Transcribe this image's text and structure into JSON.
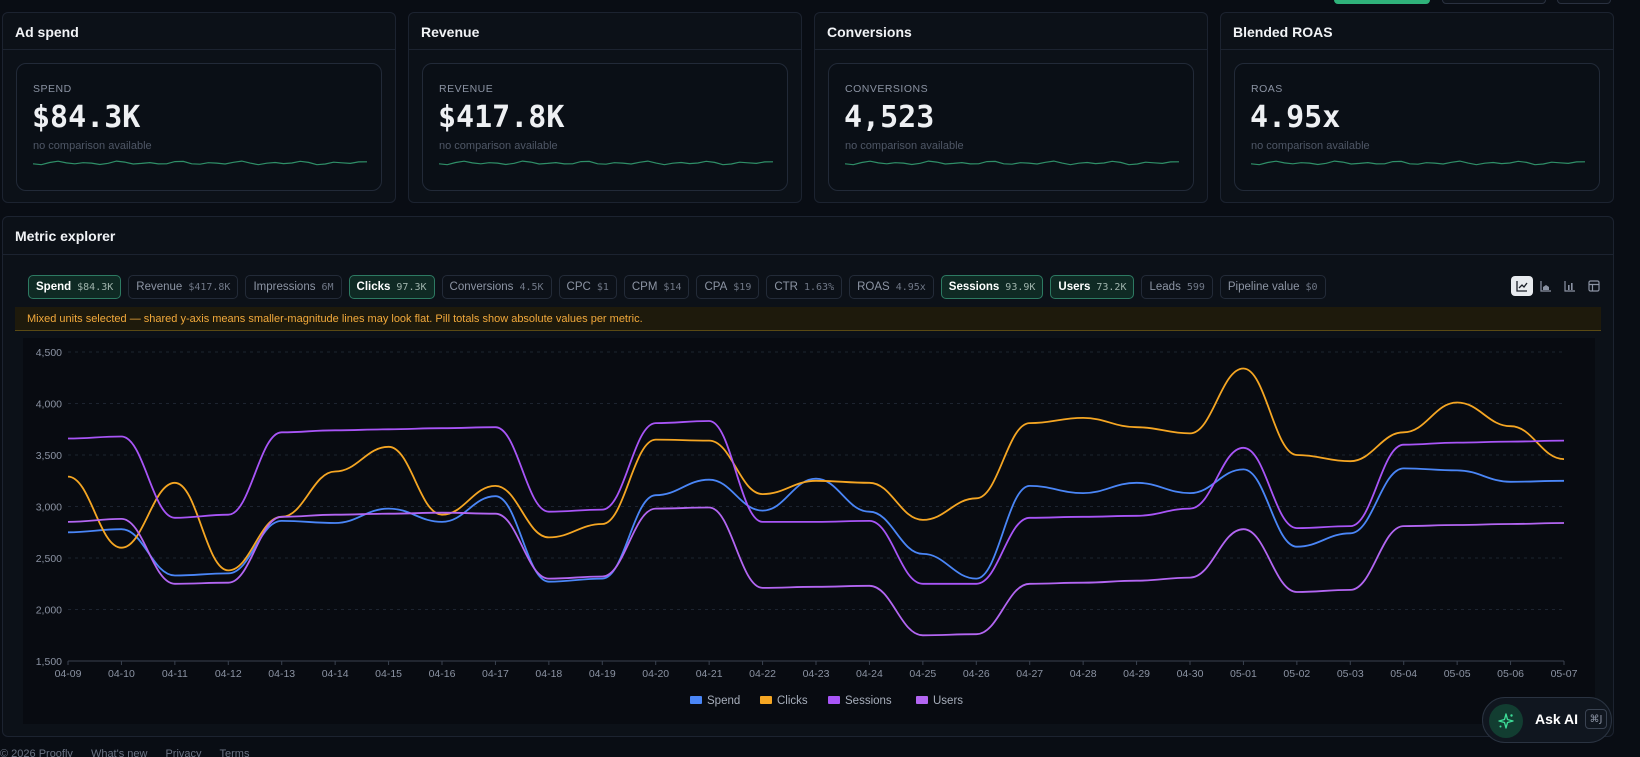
{
  "kpis": [
    {
      "title": "Ad spend",
      "label": "SPEND",
      "value": "$84.3K",
      "sub": "no comparison available"
    },
    {
      "title": "Revenue",
      "label": "REVENUE",
      "value": "$417.8K",
      "sub": "no comparison available"
    },
    {
      "title": "Conversions",
      "label": "CONVERSIONS",
      "value": "4,523",
      "sub": "no comparison available"
    },
    {
      "title": "Blended ROAS",
      "label": "ROAS",
      "value": "4.95x",
      "sub": "no comparison available"
    }
  ],
  "explorer": {
    "title": "Metric explorer",
    "pills": [
      {
        "name": "Spend",
        "value": "$84.3K",
        "active": true
      },
      {
        "name": "Revenue",
        "value": "$417.8K",
        "active": false
      },
      {
        "name": "Impressions",
        "value": "6M",
        "active": false
      },
      {
        "name": "Clicks",
        "value": "97.3K",
        "active": true
      },
      {
        "name": "Conversions",
        "value": "4.5K",
        "active": false
      },
      {
        "name": "CPC",
        "value": "$1",
        "active": false
      },
      {
        "name": "CPM",
        "value": "$14",
        "active": false
      },
      {
        "name": "CPA",
        "value": "$19",
        "active": false
      },
      {
        "name": "CTR",
        "value": "1.63%",
        "active": false
      },
      {
        "name": "ROAS",
        "value": "4.95x",
        "active": false
      },
      {
        "name": "Sessions",
        "value": "93.9K",
        "active": true
      },
      {
        "name": "Users",
        "value": "73.2K",
        "active": true
      },
      {
        "name": "Leads",
        "value": "599",
        "active": false
      },
      {
        "name": "Pipeline value",
        "value": "$0",
        "active": false
      }
    ],
    "view_icons": [
      "line-chart-icon",
      "area-chart-icon",
      "bar-chart-icon",
      "table-icon"
    ],
    "warning": "Mixed units selected — shared y-axis means smaller-magnitude lines may look flat. Pill totals show absolute values per metric."
  },
  "chart_data": {
    "type": "line",
    "x": [
      "04-09",
      "04-10",
      "04-11",
      "04-12",
      "04-13",
      "04-14",
      "04-15",
      "04-16",
      "04-17",
      "04-18",
      "04-19",
      "04-20",
      "04-21",
      "04-22",
      "04-23",
      "04-24",
      "04-25",
      "04-26",
      "04-27",
      "04-28",
      "04-29",
      "04-30",
      "05-01",
      "05-02",
      "05-03",
      "05-04",
      "05-05",
      "05-06",
      "05-07"
    ],
    "ylim": [
      1500,
      4500
    ],
    "yticks": [
      "1,500",
      "2,000",
      "2,500",
      "3,000",
      "3,500",
      "4,000",
      "4,500"
    ],
    "grid": true,
    "legend_position": "bottom",
    "series": [
      {
        "name": "Spend",
        "color": "#4a86f7",
        "values": [
          2750,
          2780,
          2330,
          2350,
          2860,
          2840,
          2980,
          2850,
          3100,
          2270,
          2300,
          3110,
          3260,
          2960,
          3270,
          2950,
          2540,
          2300,
          3200,
          3130,
          3230,
          3130,
          3360,
          2610,
          2740,
          3370,
          3350,
          3240,
          3250
        ]
      },
      {
        "name": "Clicks",
        "color": "#f5a623",
        "values": [
          3290,
          2600,
          3230,
          2380,
          2900,
          3340,
          3580,
          2920,
          3200,
          2700,
          2830,
          3650,
          3640,
          3120,
          3250,
          3230,
          2870,
          3080,
          3810,
          3860,
          3770,
          3710,
          4340,
          3500,
          3440,
          3720,
          4010,
          3780,
          3460
        ]
      },
      {
        "name": "Sessions",
        "color": "#a855f7",
        "values": [
          3660,
          3680,
          2890,
          2920,
          3720,
          3740,
          3750,
          3760,
          3770,
          2950,
          2970,
          3810,
          3830,
          2850,
          2850,
          2860,
          2250,
          2250,
          2890,
          2900,
          2910,
          2980,
          3570,
          2790,
          2810,
          3600,
          3620,
          3630,
          3640
        ]
      },
      {
        "name": "Users",
        "color": "#b366f2",
        "values": [
          2850,
          2880,
          2250,
          2260,
          2900,
          2920,
          2930,
          2940,
          2930,
          2300,
          2320,
          2980,
          2990,
          2210,
          2220,
          2230,
          1750,
          1760,
          2250,
          2260,
          2280,
          2310,
          2780,
          2170,
          2190,
          2810,
          2820,
          2830,
          2840
        ]
      }
    ]
  },
  "ask_ai": {
    "label": "Ask AI",
    "shortcut": "⌘J"
  },
  "footer": [
    "© 2026 Proofly",
    "What's new",
    "Privacy",
    "Terms"
  ]
}
